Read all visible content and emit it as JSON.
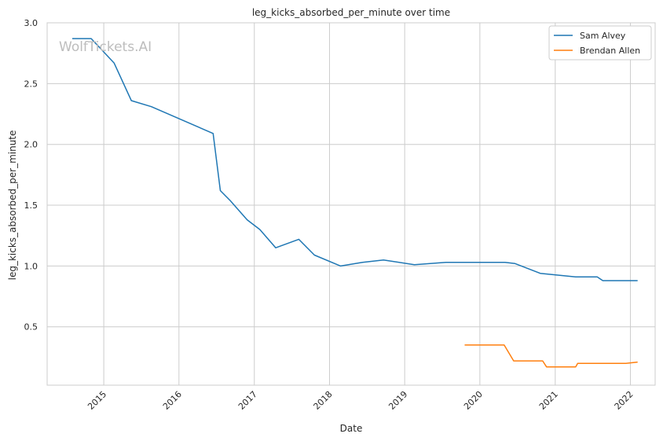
{
  "chart_data": {
    "type": "line",
    "title": "leg_kicks_absorbed_per_minute over time",
    "xlabel": "Date",
    "ylabel": "leg_kicks_absorbed_per_minute",
    "watermark": "WolfTickets.AI",
    "xlim": [
      "2014-04-01",
      "2022-05-01"
    ],
    "ylim": [
      0.02,
      3.0
    ],
    "x_ticks": [
      "2015-01-01",
      "2016-01-01",
      "2017-01-01",
      "2018-01-01",
      "2019-01-01",
      "2020-01-01",
      "2021-01-01",
      "2022-01-01"
    ],
    "x_tick_labels": [
      "2015",
      "2016",
      "2017",
      "2018",
      "2019",
      "2020",
      "2021",
      "2022"
    ],
    "y_ticks": [
      0.5,
      1.0,
      1.5,
      2.0,
      2.5,
      3.0
    ],
    "y_tick_labels": [
      "0.5",
      "1.0",
      "1.5",
      "2.0",
      "2.5",
      "3.0"
    ],
    "grid": true,
    "legend_position": "top-right",
    "series": [
      {
        "name": "Sam Alvey",
        "color": "#1f77b4",
        "points": [
          [
            "2014-08-01",
            2.87
          ],
          [
            "2014-11-01",
            2.87
          ],
          [
            "2015-02-20",
            2.67
          ],
          [
            "2015-05-15",
            2.36
          ],
          [
            "2015-08-20",
            2.31
          ],
          [
            "2016-06-15",
            2.09
          ],
          [
            "2016-07-20",
            1.62
          ],
          [
            "2016-09-05",
            1.54
          ],
          [
            "2016-11-27",
            1.38
          ],
          [
            "2017-01-28",
            1.3
          ],
          [
            "2017-04-15",
            1.15
          ],
          [
            "2017-08-05",
            1.22
          ],
          [
            "2017-10-20",
            1.09
          ],
          [
            "2018-02-24",
            1.0
          ],
          [
            "2018-06-10",
            1.03
          ],
          [
            "2018-09-20",
            1.05
          ],
          [
            "2019-02-17",
            1.01
          ],
          [
            "2019-07-20",
            1.03
          ],
          [
            "2020-05-02",
            1.03
          ],
          [
            "2020-06-20",
            1.02
          ],
          [
            "2020-10-20",
            0.94
          ],
          [
            "2021-04-10",
            0.91
          ],
          [
            "2021-07-24",
            0.91
          ],
          [
            "2021-08-20",
            0.88
          ],
          [
            "2021-12-10",
            0.88
          ],
          [
            "2022-02-05",
            0.88
          ]
        ]
      },
      {
        "name": "Brendan Allen",
        "color": "#ff7f0e",
        "points": [
          [
            "2019-10-19",
            0.35
          ],
          [
            "2020-04-28",
            0.35
          ],
          [
            "2020-06-13",
            0.22
          ],
          [
            "2020-11-01",
            0.22
          ],
          [
            "2020-11-20",
            0.17
          ],
          [
            "2021-04-10",
            0.17
          ],
          [
            "2021-04-20",
            0.2
          ],
          [
            "2021-12-10",
            0.2
          ],
          [
            "2022-02-05",
            0.21
          ]
        ]
      }
    ]
  }
}
